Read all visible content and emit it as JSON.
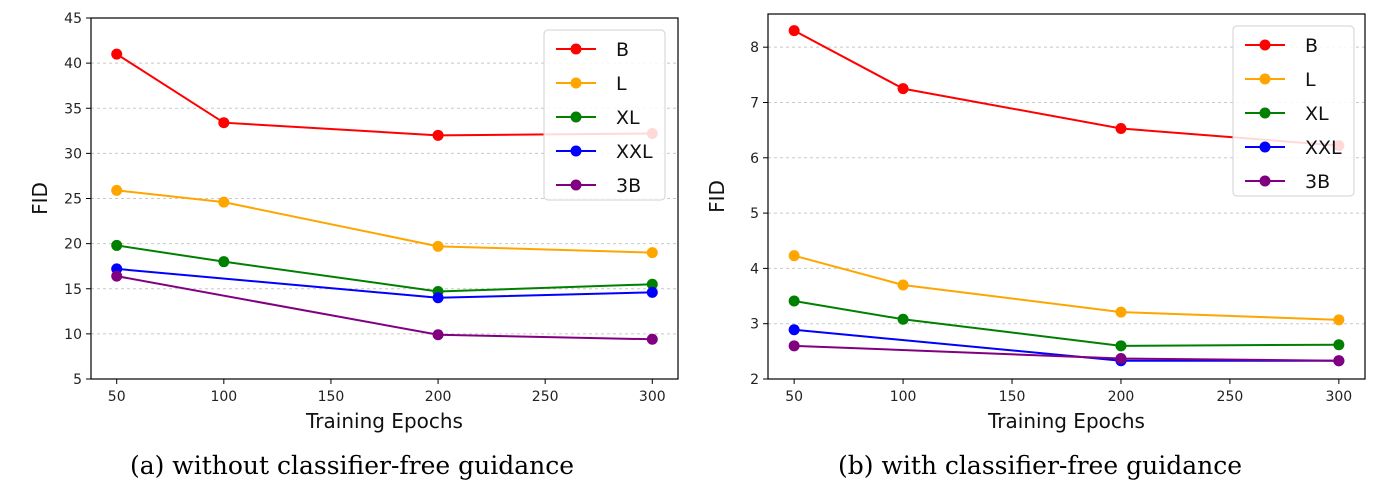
{
  "chart_data": [
    {
      "type": "line",
      "caption": "(a) without classifier-free guidance",
      "xlabel": "Training Epochs",
      "ylabel": "FID",
      "x": [
        50,
        100,
        200,
        300
      ],
      "xticks": [
        50,
        100,
        150,
        200,
        250,
        300
      ],
      "xlim": [
        38,
        312
      ],
      "ylim": [
        5,
        45
      ],
      "yticks": [
        5,
        10,
        15,
        20,
        25,
        30,
        35,
        40,
        45
      ],
      "grid": "horizontal dashed",
      "legend_position": "top-right",
      "series": [
        {
          "name": "B",
          "color": "#ff0000",
          "values": [
            41.0,
            33.4,
            32.0,
            32.2
          ]
        },
        {
          "name": "L",
          "color": "#ffa500",
          "values": [
            25.9,
            24.6,
            19.7,
            19.0
          ]
        },
        {
          "name": "XL",
          "color": "#008000",
          "values": [
            19.8,
            18.0,
            14.7,
            15.5
          ]
        },
        {
          "name": "XXL",
          "color": "#0000ff",
          "values": [
            17.2,
            null,
            14.0,
            14.6
          ]
        },
        {
          "name": "3B",
          "color": "#800080",
          "values": [
            16.4,
            null,
            9.9,
            9.4
          ]
        }
      ]
    },
    {
      "type": "line",
      "caption": "(b) with classifier-free guidance",
      "xlabel": "Training Epochs",
      "ylabel": "FID",
      "x": [
        50,
        100,
        200,
        300
      ],
      "xticks": [
        50,
        100,
        150,
        200,
        250,
        300
      ],
      "xlim": [
        38,
        312
      ],
      "ylim": [
        2,
        8.6
      ],
      "yticks": [
        2,
        3,
        4,
        5,
        6,
        7,
        8
      ],
      "grid": "horizontal dashed",
      "legend_position": "top-right",
      "series": [
        {
          "name": "B",
          "color": "#ff0000",
          "values": [
            8.3,
            7.25,
            6.53,
            6.22
          ]
        },
        {
          "name": "L",
          "color": "#ffa500",
          "values": [
            4.23,
            3.7,
            3.21,
            3.07
          ]
        },
        {
          "name": "XL",
          "color": "#008000",
          "values": [
            3.41,
            3.08,
            2.6,
            2.62
          ]
        },
        {
          "name": "XXL",
          "color": "#0000ff",
          "values": [
            2.89,
            null,
            2.33,
            2.33
          ]
        },
        {
          "name": "3B",
          "color": "#800080",
          "values": [
            2.6,
            null,
            2.37,
            2.33
          ]
        }
      ]
    }
  ]
}
